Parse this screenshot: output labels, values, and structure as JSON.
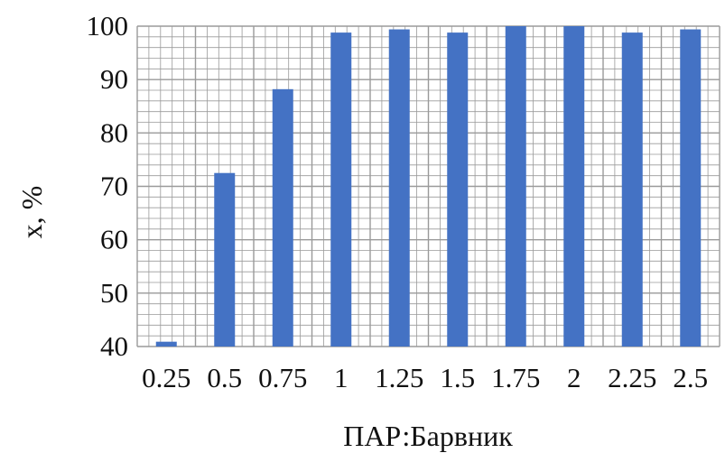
{
  "chart_data": {
    "type": "bar",
    "categories": [
      "0.25",
      "0.5",
      "0.75",
      "1",
      "1.25",
      "1.5",
      "1.75",
      "2",
      "2.25",
      "2.5"
    ],
    "series": [
      {
        "values": [
          40.9,
          72.5,
          88.2,
          98.8,
          99.4,
          98.8,
          100,
          100,
          98.8,
          99.4
        ]
      }
    ],
    "title": "",
    "xlabel": "ПАР:Барвник",
    "ylabel": "х, %",
    "ylim": [
      40,
      100
    ],
    "yticks": [
      "40",
      "50",
      "60",
      "70",
      "80",
      "90",
      "100"
    ],
    "grid": true,
    "legend": "none",
    "bar_color": "#4472c4",
    "grid_color": "#9a9a9a"
  }
}
